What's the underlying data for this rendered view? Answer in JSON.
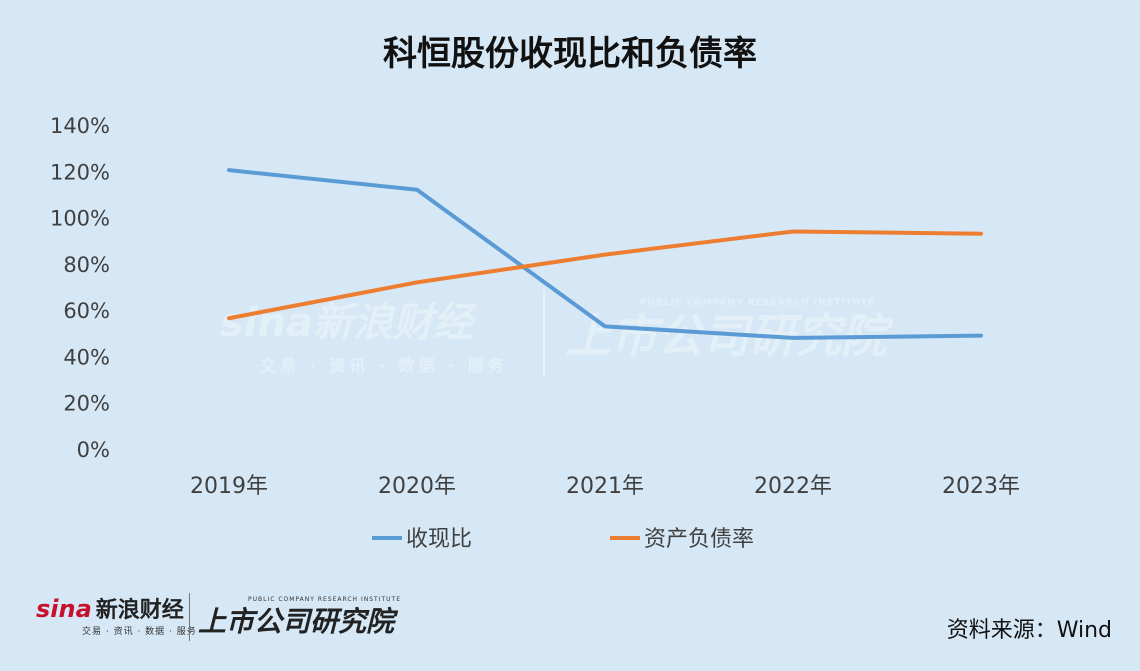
{
  "chart_data": {
    "type": "line",
    "title": "科恒股份收现比和负债率",
    "categories": [
      "2019年",
      "2020年",
      "2021年",
      "2022年",
      "2023年"
    ],
    "series": [
      {
        "name": "收现比",
        "values": [
          120.5,
          112,
          53,
          48,
          49
        ],
        "color": "#5b9bd5"
      },
      {
        "name": "资产负债率",
        "values": [
          56.5,
          72,
          84,
          94,
          93
        ],
        "color": "#ed7d31"
      }
    ],
    "ylim": [
      0,
      140
    ],
    "yticks": [
      "0%",
      "20%",
      "40%",
      "60%",
      "80%",
      "100%",
      "120%",
      "140%"
    ],
    "grid": false,
    "legend": "bottom"
  },
  "watermark": {
    "sina": "sina新浪财经",
    "sina_sub": "交易 · 资讯 · 数据 · 服务",
    "institute": "上市公司研究院",
    "institute_sub": "PUBLIC COMPANY RESEARCH INSTITUTE"
  },
  "footer": {
    "sina_brand": "sina",
    "sina_cn": "新浪财经",
    "sina_sub": "交易 · 资讯 · 数据 · 服务",
    "institute": "上市公司研究院",
    "institute_sub": "PUBLIC COMPANY RESEARCH INSTITUTE",
    "source": "资料来源：Wind"
  }
}
